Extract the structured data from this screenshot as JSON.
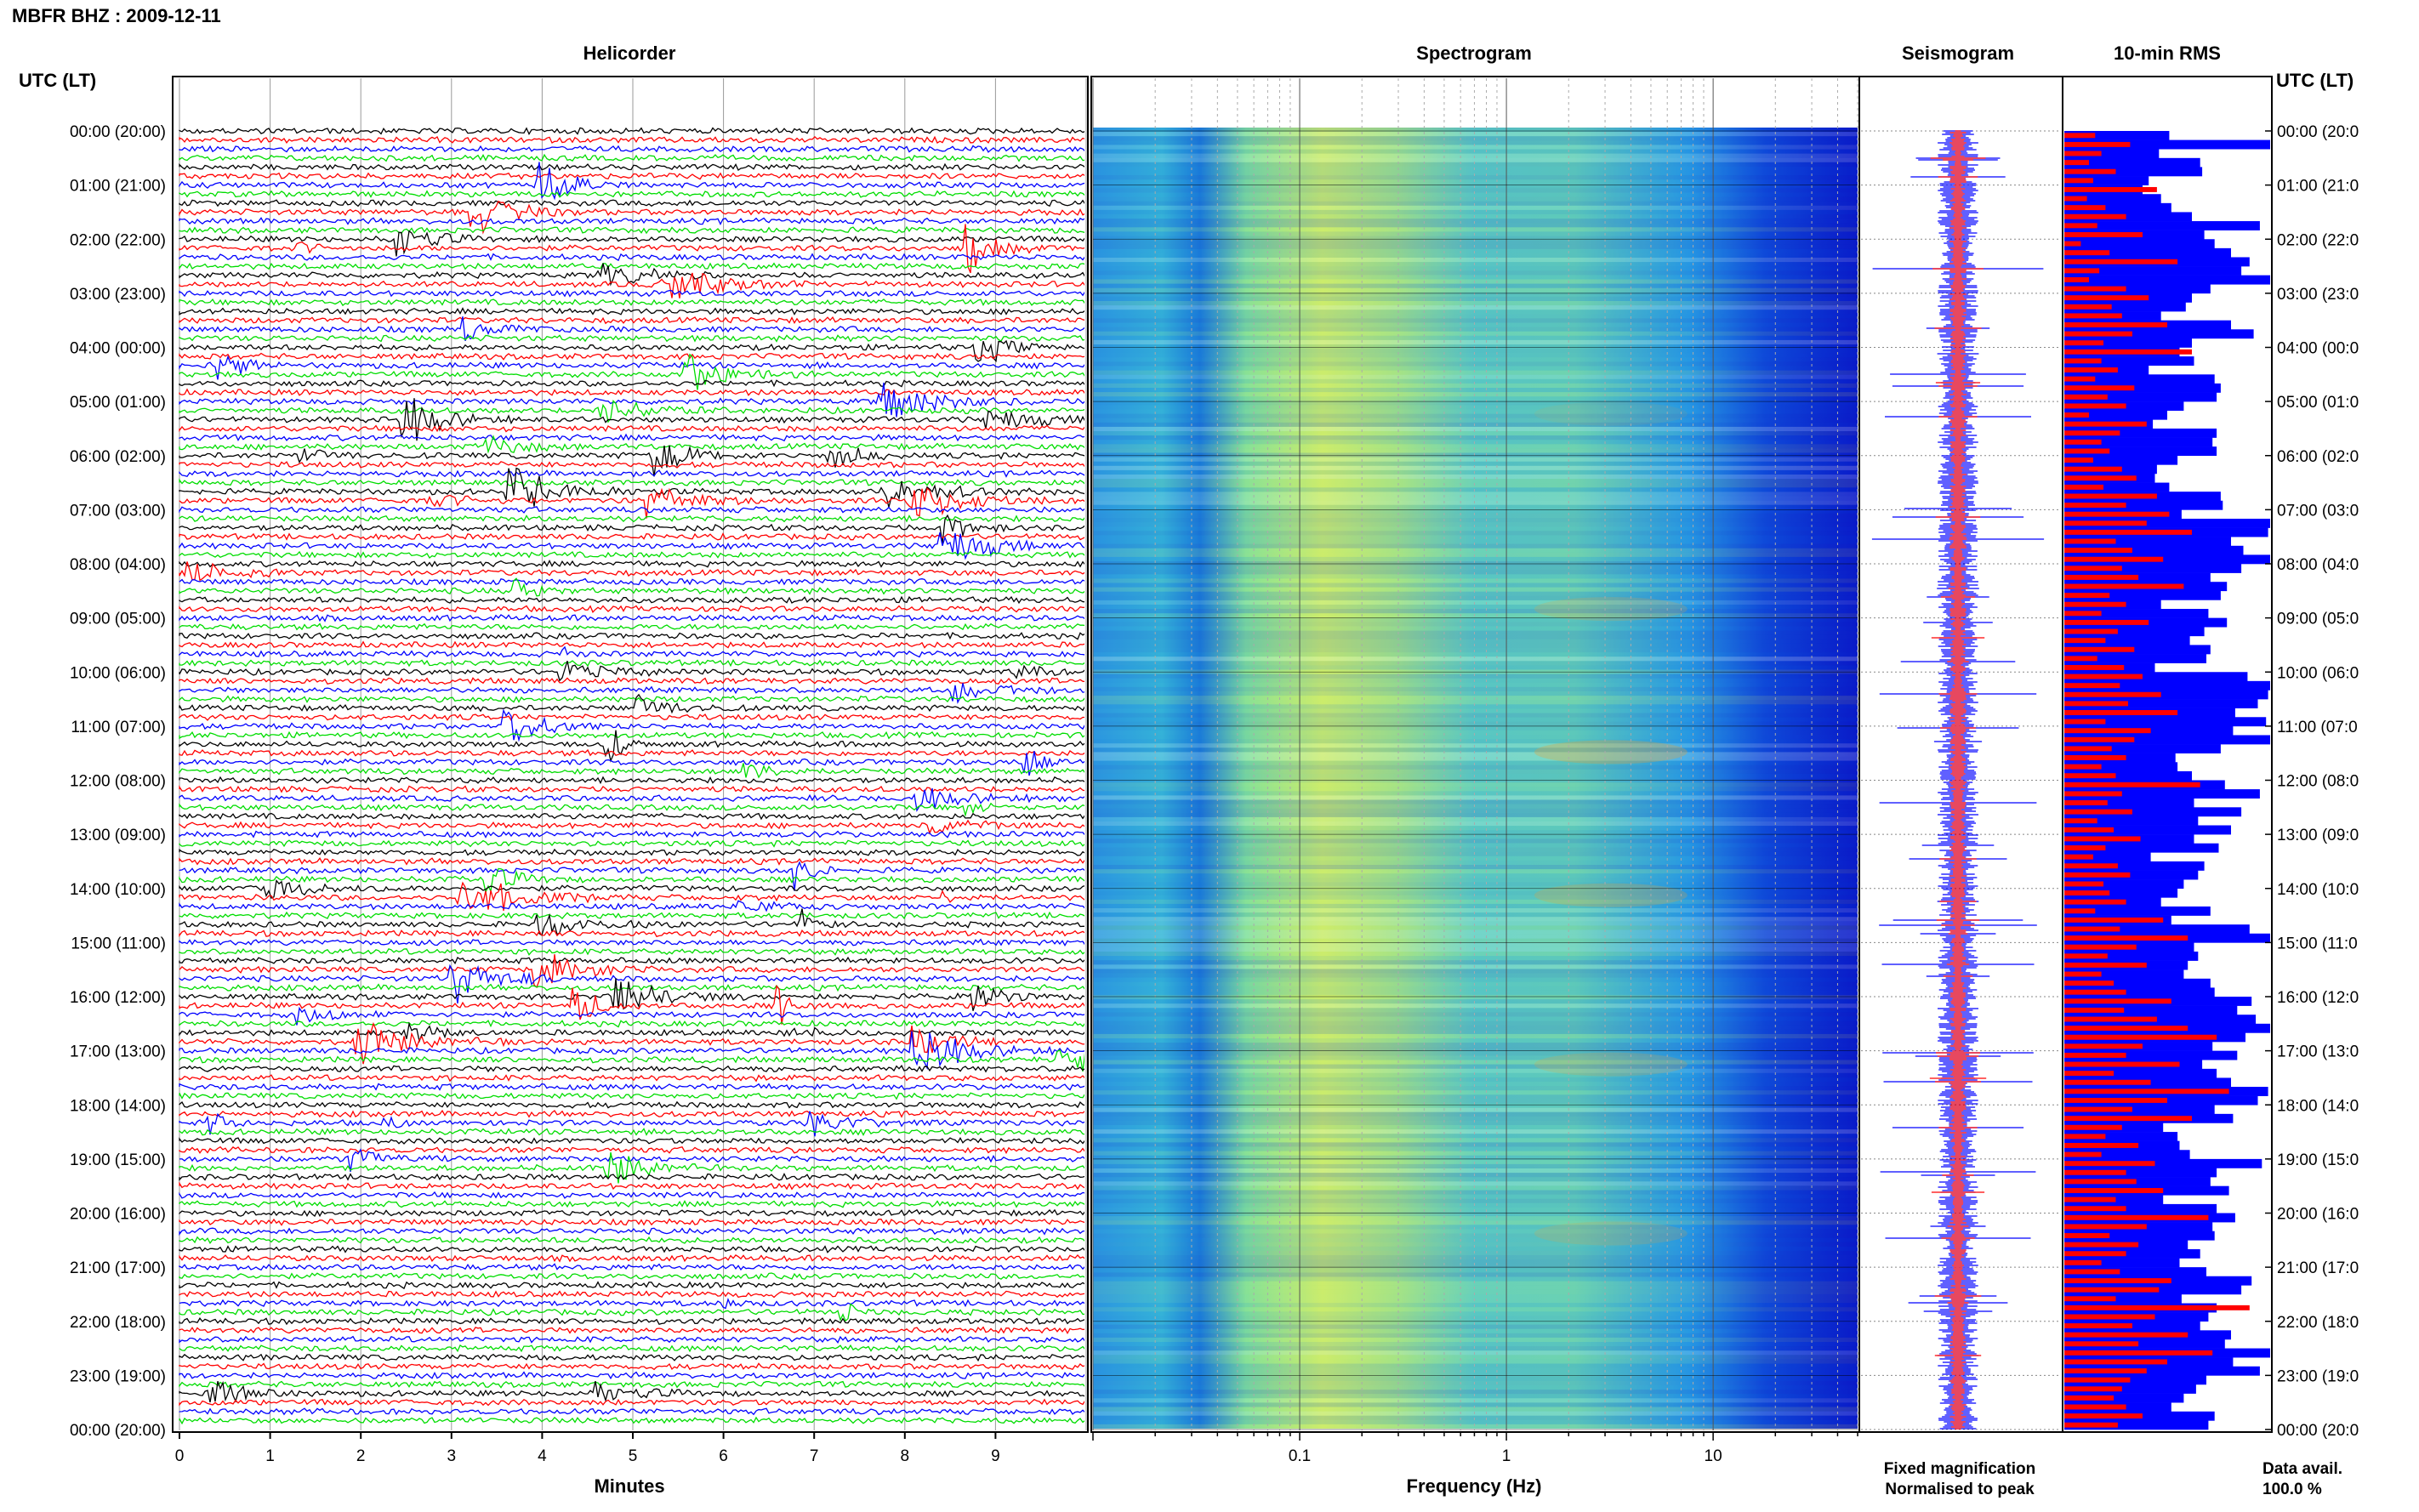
{
  "station_title": "MBFR BHZ : 2009-12-11",
  "utc_label": "UTC (LT)",
  "panels": {
    "helicorder": "Helicorder",
    "spectrogram": "Spectrogram",
    "seismogram": "Seismogram",
    "rms": "10-min RMS"
  },
  "time_ticks": [
    "00:00 (20:00)",
    "01:00 (21:00)",
    "02:00 (22:00)",
    "03:00 (23:00)",
    "04:00 (00:00)",
    "05:00 (01:00)",
    "06:00 (02:00)",
    "07:00 (03:00)",
    "08:00 (04:00)",
    "09:00 (05:00)",
    "10:00 (06:00)",
    "11:00 (07:00)",
    "12:00 (08:00)",
    "13:00 (09:00)",
    "14:00 (10:00)",
    "15:00 (11:00)",
    "16:00 (12:00)",
    "17:00 (13:00)",
    "18:00 (14:00)",
    "19:00 (15:00)",
    "20:00 (16:00)",
    "21:00 (17:00)",
    "22:00 (18:00)",
    "23:00 (19:00)",
    "00:00 (20:00)"
  ],
  "time_ticks_right": [
    "00:00 (20:0",
    "01:00 (21:0",
    "02:00 (22:0",
    "03:00 (23:0",
    "04:00 (00:0",
    "05:00 (01:0",
    "06:00 (02:0",
    "07:00 (03:0",
    "08:00 (04:0",
    "09:00 (05:0",
    "10:00 (06:0",
    "11:00 (07:0",
    "12:00 (08:0",
    "13:00 (09:0",
    "14:00 (10:0",
    "15:00 (11:0",
    "16:00 (12:0",
    "17:00 (13:0",
    "18:00 (14:0",
    "19:00 (15:0",
    "20:00 (16:0",
    "21:00 (17:0",
    "22:00 (18:0",
    "23:00 (19:0",
    "00:00 (20:0"
  ],
  "helicorder": {
    "xlabel": "Minutes",
    "x_ticks": [
      "0",
      "1",
      "2",
      "3",
      "4",
      "5",
      "6",
      "7",
      "8",
      "9"
    ],
    "xlim": [
      0,
      10
    ],
    "trace_colors": [
      "#000000",
      "#ff0000",
      "#0000ff",
      "#00dd00"
    ],
    "traces_per_hour": 6
  },
  "spectrogram": {
    "xlabel": "Frequency (Hz)",
    "x_ticks": [
      "0.1",
      "1",
      "10"
    ],
    "scale": "log",
    "xlim": [
      0.01,
      50
    ]
  },
  "legend": {
    "fixed": "Fixed magnification",
    "fixed_color": "#0000ff",
    "normalised": "Normalised to peak",
    "normalised_color": "#ff0000"
  },
  "data_avail": {
    "label": "Data avail.",
    "value": "100.0 %"
  },
  "chart_data": {
    "type": "bar",
    "title": "10-min RMS",
    "note": "relative per-interval amplitude, 0-1 of panel width",
    "series": [
      {
        "name": "Fixed magnification",
        "values": [
          0.51,
          1.0,
          0.46,
          0.66,
          0.67,
          0.41,
          0.38,
          0.47,
          0.52,
          0.62,
          0.95,
          0.68,
          0.73,
          0.81,
          0.9,
          0.86,
          1.0,
          0.71,
          0.62,
          0.59,
          0.47,
          0.81,
          0.92,
          0.62,
          0.56,
          0.63,
          0.41,
          0.73,
          0.76,
          0.74,
          0.58,
          0.5,
          0.43,
          0.74,
          0.72,
          0.74,
          0.55,
          0.45,
          0.44,
          0.51,
          0.76,
          0.77,
          0.57,
          1.0,
          0.99,
          0.81,
          0.87,
          1.0,
          0.86,
          0.71,
          0.79,
          0.76,
          0.47,
          0.7,
          0.79,
          0.68,
          0.61,
          0.71,
          0.69,
          0.44,
          0.89,
          1.0,
          0.99,
          0.94,
          0.83,
          0.98,
          0.82,
          1.0,
          0.76,
          0.54,
          0.55,
          0.62,
          0.78,
          0.95,
          0.63,
          0.86,
          0.65,
          0.81,
          0.63,
          0.75,
          0.42,
          0.68,
          0.65,
          0.58,
          0.55,
          0.47,
          0.71,
          0.52,
          0.9,
          1.0,
          0.63,
          0.65,
          0.6,
          0.58,
          0.71,
          0.73,
          0.91,
          0.84,
          0.93,
          1.0,
          0.88,
          0.72,
          0.84,
          0.67,
          0.74,
          0.81,
          0.99,
          0.94,
          0.73,
          0.82,
          0.48,
          0.55,
          0.56,
          0.61,
          0.96,
          0.74,
          0.71,
          0.8,
          0.48,
          0.74,
          0.83,
          0.72,
          0.73,
          0.6,
          0.66,
          0.56,
          0.69,
          0.91,
          0.86,
          0.57,
          0.74,
          0.7,
          0.66,
          0.81,
          0.78,
          1.0,
          0.82,
          0.95,
          0.69,
          0.64,
          0.58,
          0.52,
          0.73,
          0.7
        ]
      },
      {
        "name": "Normalised to peak",
        "values": [
          0.15,
          0.32,
          0.18,
          0.12,
          0.25,
          0.14,
          0.45,
          0.11,
          0.2,
          0.3,
          0.16,
          0.38,
          0.08,
          0.22,
          0.55,
          0.17,
          0.12,
          0.3,
          0.41,
          0.23,
          0.28,
          0.5,
          0.33,
          0.19,
          0.62,
          0.18,
          0.26,
          0.15,
          0.34,
          0.21,
          0.3,
          0.12,
          0.4,
          0.27,
          0.18,
          0.22,
          0.14,
          0.28,
          0.35,
          0.19,
          0.45,
          0.3,
          0.51,
          0.4,
          0.62,
          0.25,
          0.33,
          0.48,
          0.28,
          0.36,
          0.58,
          0.22,
          0.3,
          0.18,
          0.41,
          0.26,
          0.2,
          0.34,
          0.16,
          0.29,
          0.38,
          0.27,
          0.47,
          0.31,
          0.55,
          0.2,
          0.42,
          0.34,
          0.23,
          0.3,
          0.18,
          0.25,
          0.66,
          0.28,
          0.21,
          0.33,
          0.16,
          0.24,
          0.37,
          0.2,
          0.14,
          0.26,
          0.32,
          0.19,
          0.22,
          0.3,
          0.15,
          0.48,
          0.27,
          0.6,
          0.35,
          0.21,
          0.4,
          0.18,
          0.24,
          0.3,
          0.52,
          0.29,
          0.45,
          0.6,
          0.74,
          0.38,
          0.3,
          0.56,
          0.24,
          0.42,
          0.8,
          0.5,
          0.33,
          0.62,
          0.28,
          0.2,
          0.36,
          0.18,
          0.44,
          0.3,
          0.35,
          0.48,
          0.25,
          0.3,
          0.7,
          0.4,
          0.22,
          0.36,
          0.3,
          0.18,
          0.27,
          0.52,
          0.46,
          0.25,
          0.9,
          0.44,
          0.33,
          0.6,
          0.36,
          0.72,
          0.5,
          0.4,
          0.32,
          0.28,
          0.24,
          0.3,
          0.38,
          0.26
        ]
      }
    ]
  }
}
